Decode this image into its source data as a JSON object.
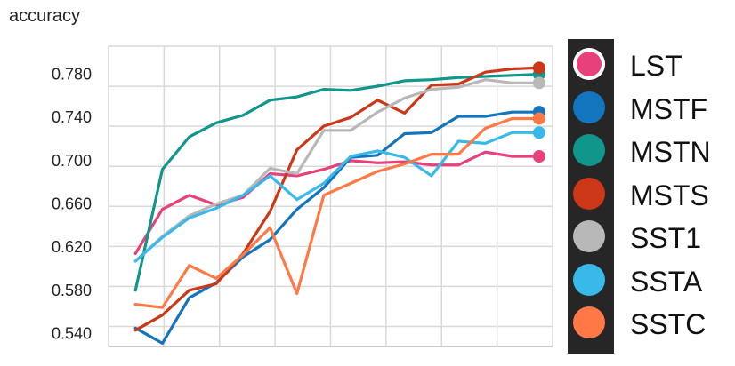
{
  "chart_data": {
    "type": "line",
    "title": "accuracy",
    "xlabel": "",
    "ylabel": "",
    "ylim": [
      0.528,
      0.806
    ],
    "xlim": [
      -1,
      15.5
    ],
    "yticks": [
      "0.540",
      "0.580",
      "0.620",
      "0.660",
      "0.700",
      "0.740",
      "0.780"
    ],
    "ytick_values": [
      0.54,
      0.58,
      0.62,
      0.66,
      0.7,
      0.74,
      0.78
    ],
    "x": [
      0,
      1,
      2,
      3,
      4,
      5,
      6,
      7,
      8,
      9,
      10,
      11,
      12,
      13,
      14,
      15
    ],
    "grid": true,
    "legend_position": "right",
    "series": [
      {
        "name": "LST",
        "color": "#e8407a",
        "values": [
          0.614,
          0.655,
          0.668,
          0.659,
          0.666,
          0.688,
          0.686,
          0.692,
          0.7,
          0.698,
          0.699,
          0.696,
          0.696,
          0.708,
          0.704,
          0.704
        ]
      },
      {
        "name": "MSTF",
        "color": "#1375bd",
        "values": [
          0.545,
          0.531,
          0.573,
          0.587,
          0.611,
          0.627,
          0.655,
          0.675,
          0.703,
          0.705,
          0.725,
          0.726,
          0.741,
          0.741,
          0.745,
          0.745
        ]
      },
      {
        "name": "MSTN",
        "color": "#10968a",
        "values": [
          0.58,
          0.692,
          0.722,
          0.735,
          0.742,
          0.756,
          0.759,
          0.766,
          0.765,
          0.769,
          0.774,
          0.775,
          0.777,
          0.778,
          0.779,
          0.78
        ]
      },
      {
        "name": "MSTS",
        "color": "#cc3817",
        "values": [
          0.543,
          0.557,
          0.58,
          0.586,
          0.614,
          0.653,
          0.71,
          0.732,
          0.74,
          0.756,
          0.744,
          0.77,
          0.771,
          0.782,
          0.785,
          0.786
        ]
      },
      {
        "name": "SST1",
        "color": "#b8b8b8",
        "values": [
          0.607,
          0.63,
          0.649,
          0.66,
          0.668,
          0.693,
          0.688,
          0.728,
          0.728,
          0.745,
          0.758,
          0.766,
          0.768,
          0.775,
          0.772,
          0.772
        ]
      },
      {
        "name": "SSTA",
        "color": "#38b9ea",
        "values": [
          0.607,
          0.629,
          0.647,
          0.656,
          0.668,
          0.686,
          0.664,
          0.679,
          0.704,
          0.709,
          0.703,
          0.686,
          0.718,
          0.716,
          0.726,
          0.726
        ]
      },
      {
        "name": "SSTC",
        "color": "#ff7845",
        "values": [
          0.567,
          0.564,
          0.603,
          0.591,
          0.613,
          0.638,
          0.577,
          0.668,
          0.679,
          0.69,
          0.697,
          0.706,
          0.706,
          0.73,
          0.739,
          0.739
        ]
      }
    ]
  }
}
